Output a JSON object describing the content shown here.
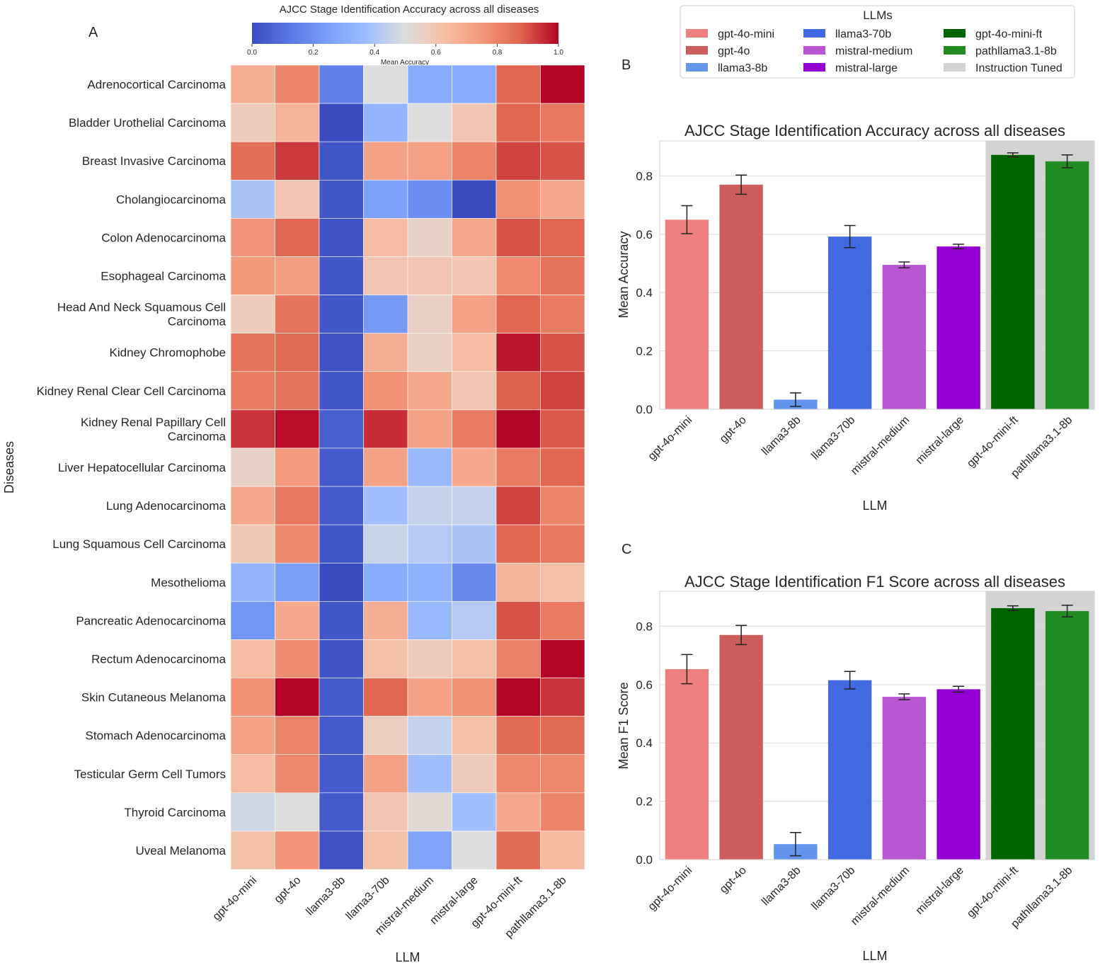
{
  "panel_labels": {
    "a": "A",
    "b": "B",
    "c": "C"
  },
  "legend": {
    "title": "LLMs",
    "items": [
      {
        "label": "gpt-4o-mini",
        "color": "#F08080"
      },
      {
        "label": "gpt-4o",
        "color": "#CD5C5C"
      },
      {
        "label": "llama3-8b",
        "color": "#6495ED"
      },
      {
        "label": "llama3-70b",
        "color": "#4169E1"
      },
      {
        "label": "mistral-medium",
        "color": "#BA55D3"
      },
      {
        "label": "mistral-large",
        "color": "#9400D3"
      },
      {
        "label": "gpt-4o-mini-ft",
        "color": "#006400"
      },
      {
        "label": "pathllama3.1-8b",
        "color": "#228B22"
      },
      {
        "label": "Instruction Tuned",
        "color": "#D3D3D3"
      }
    ]
  },
  "chart_data": [
    {
      "type": "heatmap",
      "panel": "A",
      "title": "AJCC Stage Identification Accuracy across all diseases",
      "colorbar_label": "Mean Accuracy",
      "colorbar_range": [
        0.0,
        1.0
      ],
      "colorbar_ticks": [
        "0.0",
        "0.2",
        "0.4",
        "0.6",
        "0.8",
        "1.0"
      ],
      "xlabel": "LLM",
      "ylabel": "Diseases",
      "x_categories": [
        "gpt-4o-mini",
        "gpt-4o",
        "llama3-8b",
        "llama3-70b",
        "mistral-medium",
        "mistral-large",
        "gpt-4o-mini-ft",
        "pathllama3.1-8b"
      ],
      "rows": [
        {
          "label": [
            "Adrenocortical Carcinoma"
          ],
          "values": [
            0.68,
            0.8,
            0.15,
            0.5,
            0.3,
            0.3,
            0.87,
            1.0
          ]
        },
        {
          "label": [
            "Bladder Urothelial Carcinoma"
          ],
          "values": [
            0.58,
            0.66,
            0.0,
            0.34,
            0.5,
            0.6,
            0.87,
            0.83
          ]
        },
        {
          "label": [
            "Breast Invasive Carcinoma"
          ],
          "values": [
            0.85,
            0.93,
            0.03,
            0.72,
            0.72,
            0.8,
            0.92,
            0.9
          ]
        },
        {
          "label": [
            "Cholangiocarcinoma"
          ],
          "values": [
            0.4,
            0.6,
            0.03,
            0.26,
            0.2,
            0.0,
            0.77,
            0.7
          ]
        },
        {
          "label": [
            "Colon Adenocarcinoma"
          ],
          "values": [
            0.76,
            0.87,
            0.02,
            0.63,
            0.55,
            0.7,
            0.9,
            0.87
          ]
        },
        {
          "label": [
            "Esophageal Carcinoma"
          ],
          "values": [
            0.75,
            0.73,
            0.03,
            0.6,
            0.6,
            0.6,
            0.78,
            0.84
          ]
        },
        {
          "label": [
            "Head And Neck Squamous Cell",
            "Carcinoma"
          ],
          "values": [
            0.58,
            0.84,
            0.03,
            0.23,
            0.56,
            0.72,
            0.87,
            0.82
          ]
        },
        {
          "label": [
            "Kidney Chromophobe"
          ],
          "values": [
            0.84,
            0.86,
            0.02,
            0.68,
            0.56,
            0.63,
            0.98,
            0.9
          ]
        },
        {
          "label": [
            "Kidney Renal Clear Cell Carcinoma"
          ],
          "values": [
            0.82,
            0.84,
            0.03,
            0.77,
            0.7,
            0.6,
            0.88,
            0.92
          ]
        },
        {
          "label": [
            "Kidney Renal Papillary Cell",
            "Carcinoma"
          ],
          "values": [
            0.94,
            0.99,
            0.05,
            0.95,
            0.72,
            0.82,
            1.0,
            0.89
          ]
        },
        {
          "label": [
            "Liver Hepatocellular Carcinoma"
          ],
          "values": [
            0.55,
            0.74,
            0.04,
            0.72,
            0.36,
            0.7,
            0.82,
            0.87
          ]
        },
        {
          "label": [
            "Lung Adenocarcinoma"
          ],
          "values": [
            0.7,
            0.83,
            0.04,
            0.38,
            0.45,
            0.45,
            0.92,
            0.8
          ]
        },
        {
          "label": [
            "Lung Squamous Cell Carcinoma"
          ],
          "values": [
            0.59,
            0.79,
            0.03,
            0.46,
            0.42,
            0.4,
            0.87,
            0.83
          ]
        },
        {
          "label": [
            "Mesothelioma"
          ],
          "values": [
            0.34,
            0.25,
            0.0,
            0.3,
            0.32,
            0.18,
            0.66,
            0.62
          ]
        },
        {
          "label": [
            "Pancreatic Adenocarcinoma"
          ],
          "values": [
            0.22,
            0.7,
            0.03,
            0.68,
            0.35,
            0.42,
            0.9,
            0.82
          ]
        },
        {
          "label": [
            "Rectum Adenocarcinoma"
          ],
          "values": [
            0.63,
            0.78,
            0.02,
            0.62,
            0.58,
            0.62,
            0.81,
            1.0
          ]
        },
        {
          "label": [
            "Skin Cutaneous Melanoma"
          ],
          "values": [
            0.77,
            1.0,
            0.04,
            0.87,
            0.72,
            0.77,
            1.0,
            0.94
          ]
        },
        {
          "label": [
            "Stomach Adenocarcinoma"
          ],
          "values": [
            0.72,
            0.8,
            0.04,
            0.57,
            0.45,
            0.62,
            0.86,
            0.86
          ]
        },
        {
          "label": [
            "Testicular Germ Cell Tumors"
          ],
          "values": [
            0.63,
            0.79,
            0.04,
            0.72,
            0.38,
            0.58,
            0.79,
            0.79
          ]
        },
        {
          "label": [
            "Thyroid Carcinoma"
          ],
          "values": [
            0.47,
            0.5,
            0.04,
            0.6,
            0.52,
            0.38,
            0.7,
            0.8
          ]
        },
        {
          "label": [
            "Uveal Melanoma"
          ],
          "values": [
            0.62,
            0.76,
            0.02,
            0.62,
            0.27,
            0.5,
            0.86,
            0.64
          ]
        }
      ]
    },
    {
      "type": "bar",
      "panel": "B",
      "title": "AJCC Stage Identification Accuracy across all diseases",
      "xlabel": "LLM",
      "ylabel": "Mean Accuracy",
      "ylim": [
        0,
        0.92
      ],
      "yticks": [
        "0.0",
        "0.2",
        "0.4",
        "0.6",
        "0.8"
      ],
      "categories": [
        "gpt-4o-mini",
        "gpt-4o",
        "llama3-8b",
        "llama3-70b",
        "mistral-medium",
        "mistral-large",
        "gpt-4o-mini-ft",
        "pathllama3.1-8b"
      ],
      "values": [
        0.65,
        0.77,
        0.033,
        0.592,
        0.495,
        0.558,
        0.872,
        0.85
      ],
      "errors": [
        0.048,
        0.033,
        0.023,
        0.038,
        0.01,
        0.008,
        0.007,
        0.022
      ],
      "highlight_region": {
        "label": "Instruction Tuned",
        "categories": [
          "gpt-4o-mini-ft",
          "pathllama3.1-8b"
        ]
      }
    },
    {
      "type": "bar",
      "panel": "C",
      "title": "AJCC Stage Identification F1 Score across all diseases",
      "xlabel": "LLM",
      "ylabel": "Mean F1 Score",
      "ylim": [
        0,
        0.92
      ],
      "yticks": [
        "0.0",
        "0.2",
        "0.4",
        "0.6",
        "0.8"
      ],
      "categories": [
        "gpt-4o-mini",
        "gpt-4o",
        "llama3-8b",
        "llama3-70b",
        "mistral-medium",
        "mistral-large",
        "gpt-4o-mini-ft",
        "pathllama3.1-8b"
      ],
      "values": [
        0.653,
        0.77,
        0.053,
        0.615,
        0.558,
        0.584,
        0.862,
        0.852
      ],
      "errors": [
        0.05,
        0.033,
        0.04,
        0.03,
        0.01,
        0.01,
        0.008,
        0.02
      ],
      "highlight_region": {
        "label": "Instruction Tuned",
        "categories": [
          "gpt-4o-mini-ft",
          "pathllama3.1-8b"
        ]
      }
    }
  ]
}
